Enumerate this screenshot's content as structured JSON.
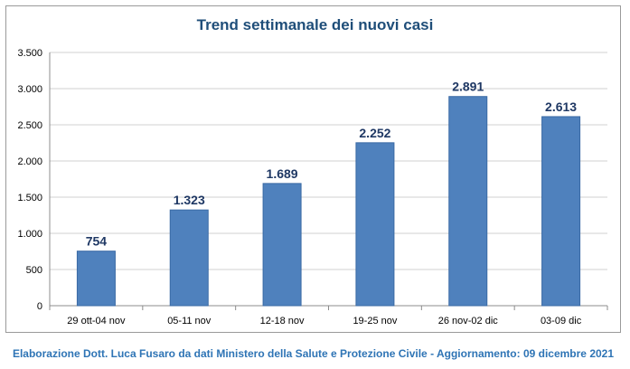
{
  "chart_data": {
    "type": "bar",
    "title": "Trend settimanale dei nuovi casi",
    "categories": [
      "29 ott-04 nov",
      "05-11 nov",
      "12-18 nov",
      "19-25 nov",
      "26 nov-02 dic",
      "03-09 dic"
    ],
    "values": [
      754,
      1323,
      1689,
      2252,
      2891,
      2613
    ],
    "value_labels": [
      "754",
      "1.323",
      "1.689",
      "2.252",
      "2.891",
      "2.613"
    ],
    "ylim": [
      0,
      3500
    ],
    "yticks": [
      0,
      500,
      1000,
      1500,
      2000,
      2500,
      3000,
      3500
    ],
    "ytick_labels": [
      "0",
      "500",
      "1.000",
      "1.500",
      "2.000",
      "2.500",
      "3.000",
      "3.500"
    ],
    "grid": true,
    "bar_color": "#4f81bd",
    "title_color": "#1f4e79"
  },
  "footer": "Elaborazione Dott. Luca Fusaro da dati Ministero della Salute e Protezione Civile - Aggiornamento: 09 dicembre 2021"
}
